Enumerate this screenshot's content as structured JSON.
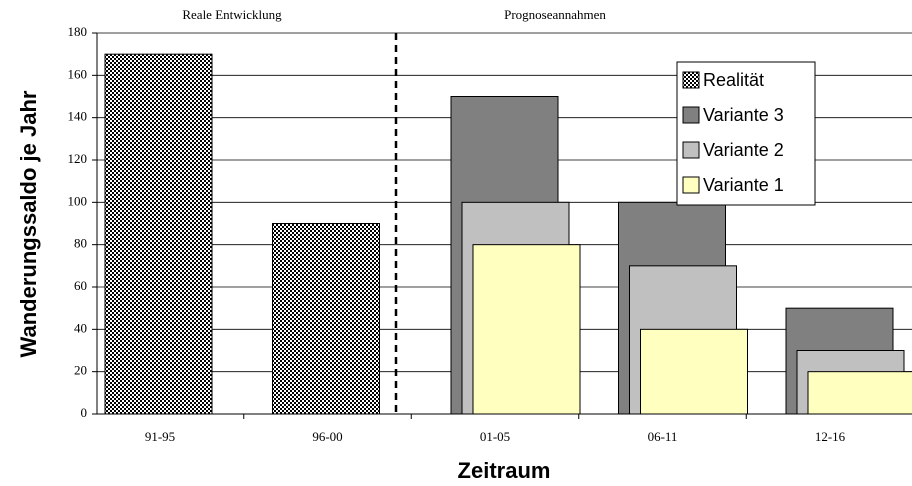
{
  "chart_data": {
    "type": "bar",
    "annotations": [
      "Reale Entwicklung",
      "Prognoseannahmen"
    ],
    "xlabel": "Zeitraum",
    "ylabel": "Wanderungssaldo je Jahr",
    "categories": [
      "91-95",
      "96-00",
      "01-05",
      "06-11",
      "12-16"
    ],
    "series": [
      {
        "name": "Realität",
        "color": "checker",
        "values": [
          170,
          90,
          null,
          null,
          null
        ]
      },
      {
        "name": "Variante 3",
        "color": "#808080",
        "values": [
          null,
          null,
          150,
          100,
          50
        ]
      },
      {
        "name": "Variante 2",
        "color": "#c0c0c0",
        "values": [
          null,
          null,
          100,
          70,
          30
        ]
      },
      {
        "name": "Variante 1",
        "color": "#ffffc0",
        "values": [
          null,
          null,
          80,
          40,
          20
        ]
      }
    ],
    "ylim": [
      0,
      180
    ],
    "yticks": [
      0,
      20,
      40,
      60,
      80,
      100,
      120,
      140,
      160,
      180
    ],
    "grid": true,
    "legend": "upper right"
  }
}
